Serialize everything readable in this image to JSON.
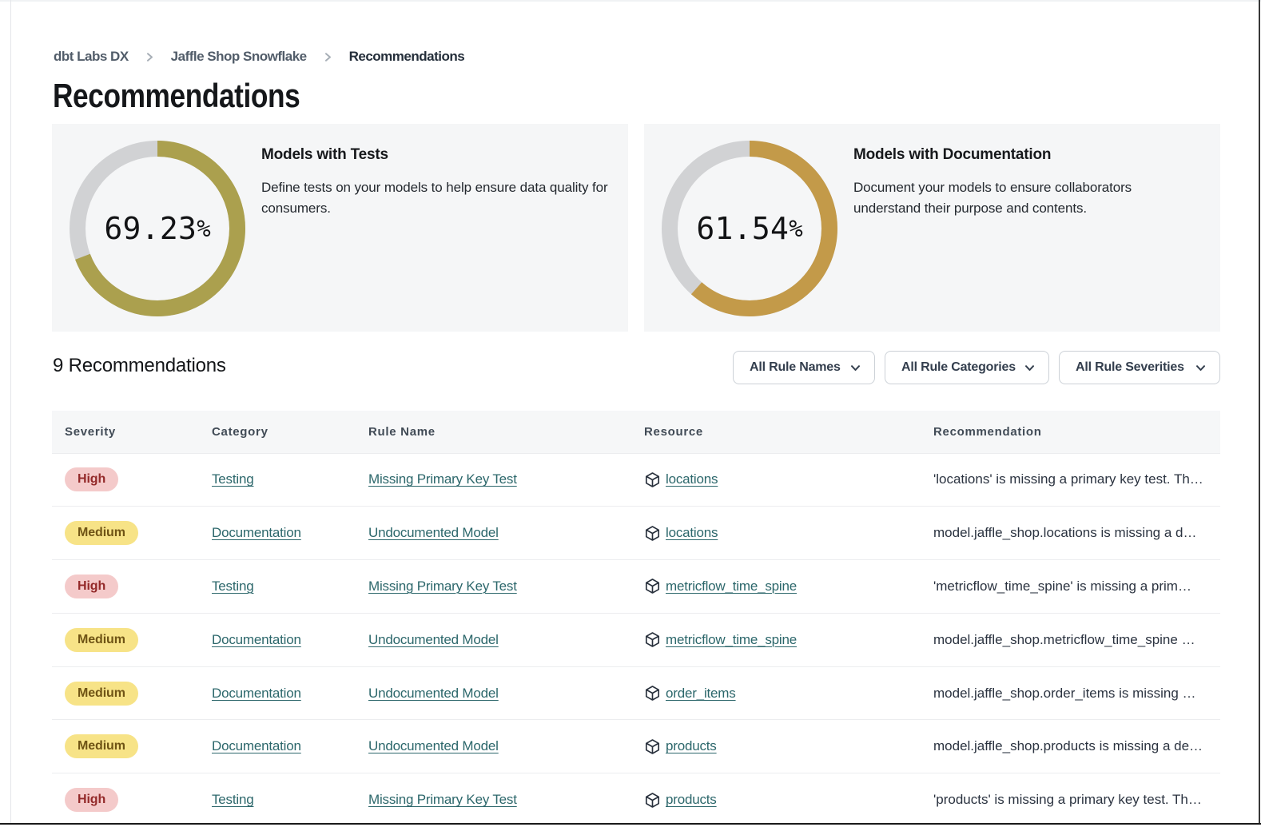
{
  "breadcrumb": {
    "items": [
      {
        "label": "dbt Labs DX",
        "current": false
      },
      {
        "label": "Jaffle Shop Snowflake",
        "current": false
      },
      {
        "label": "Recommendations",
        "current": true
      }
    ]
  },
  "page_title": "Recommendations",
  "cards": [
    {
      "title": "Models with Tests",
      "description": "Define tests on your models to help ensure data quality for consumers.",
      "description_lines": [
        "Define tests on your models to help ensure data quality for",
        "consumers."
      ],
      "percent": 69.23,
      "percent_text": "69.23",
      "percent_unit": "%",
      "ring_color": "#aba04e",
      "track_color": "#d1d2d4"
    },
    {
      "title": "Models with Documentation",
      "description": "Document your models to ensure collaborators understand their purpose and contents.",
      "description_lines": [
        "Document your models to ensure collaborators",
        "understand their purpose and contents."
      ],
      "percent": 61.54,
      "percent_text": "61.54",
      "percent_unit": "%",
      "ring_color": "#c39a49",
      "track_color": "#d1d2d4"
    }
  ],
  "chart_data": [
    {
      "type": "donut",
      "title": "Models with Tests",
      "value": 69.23,
      "max": 100,
      "label": "69.23%",
      "filled_color": "#aba04e",
      "empty_color": "#d1d2d4"
    },
    {
      "type": "donut",
      "title": "Models with Documentation",
      "value": 61.54,
      "max": 100,
      "label": "61.54%",
      "filled_color": "#c39a49",
      "empty_color": "#d1d2d4"
    }
  ],
  "list_header": {
    "count_label": "9 Recommendations"
  },
  "filters": [
    {
      "label": "All Rule Names"
    },
    {
      "label": "All Rule Categories"
    },
    {
      "label": "All Rule Severities"
    }
  ],
  "table": {
    "columns": [
      "Severity",
      "Category",
      "Rule Name",
      "Resource",
      "Recommendation"
    ],
    "rows": [
      {
        "severity": "High",
        "category": "Testing",
        "rule_name": "Missing Primary Key Test",
        "resource": "locations",
        "recommendation": "'locations' is missing a primary key test. Th…"
      },
      {
        "severity": "Medium",
        "category": "Documentation",
        "rule_name": "Undocumented Model",
        "resource": "locations",
        "recommendation": "model.jaffle_shop.locations is missing a d…"
      },
      {
        "severity": "High",
        "category": "Testing",
        "rule_name": "Missing Primary Key Test",
        "resource": "metricflow_time_spine",
        "recommendation": "'metricflow_time_spine' is missing a prim…"
      },
      {
        "severity": "Medium",
        "category": "Documentation",
        "rule_name": "Undocumented Model",
        "resource": "metricflow_time_spine",
        "recommendation": "model.jaffle_shop.metricflow_time_spine …"
      },
      {
        "severity": "Medium",
        "category": "Documentation",
        "rule_name": "Undocumented Model",
        "resource": "order_items",
        "recommendation": "model.jaffle_shop.order_items is missing …"
      },
      {
        "severity": "Medium",
        "category": "Documentation",
        "rule_name": "Undocumented Model",
        "resource": "products",
        "recommendation": "model.jaffle_shop.products is missing a de…"
      },
      {
        "severity": "High",
        "category": "Testing",
        "rule_name": "Missing Primary Key Test",
        "resource": "products",
        "recommendation": "'products' is missing a primary key test. Th…"
      }
    ]
  },
  "colors": {
    "severity_high_bg": "#f4caca",
    "severity_high_text": "#932929",
    "severity_medium_bg": "#f7e387",
    "severity_medium_text": "#6f5415",
    "link": "#2c676b",
    "card_bg": "#f5f6f7",
    "ring_tests": "#aba04e",
    "ring_docs": "#c39a49",
    "ring_track": "#d1d2d4"
  }
}
